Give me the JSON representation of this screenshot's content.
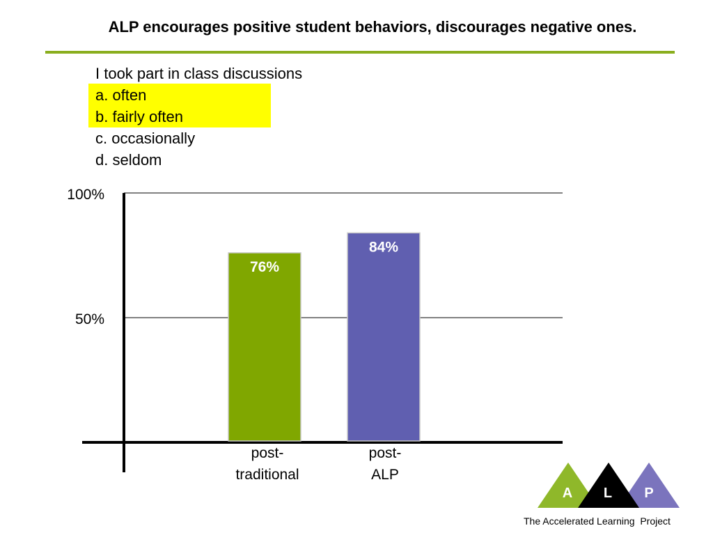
{
  "title": "ALP encourages positive student behaviors, discourages negative ones.",
  "question": {
    "prompt": "I took part in class discussions",
    "options": [
      "a. often",
      "b. fairly often",
      "c. occasionally",
      "d. seldom"
    ]
  },
  "colors": {
    "accent": "#8aae1e",
    "highlight": "#ffff00",
    "bar_green": "#80a700",
    "bar_purple": "#605fb0",
    "logo_a": "#8fb82a",
    "logo_l": "#000000",
    "logo_p": "#7b74bd"
  },
  "chart_data": {
    "type": "bar",
    "categories": [
      "post-traditional",
      "post-ALP"
    ],
    "category_lines": [
      [
        "post-",
        "traditional"
      ],
      [
        "post-",
        "ALP"
      ]
    ],
    "values": [
      76,
      84
    ],
    "data_labels": [
      "76%",
      "84%"
    ],
    "ylim": [
      0,
      100
    ],
    "yticks": [
      50,
      100
    ],
    "ytick_labels": [
      "50%",
      "100%"
    ],
    "grid": true
  },
  "logo": {
    "letters": [
      "A",
      "L",
      "P"
    ]
  },
  "footer": "The Accelerated Learning  Project"
}
